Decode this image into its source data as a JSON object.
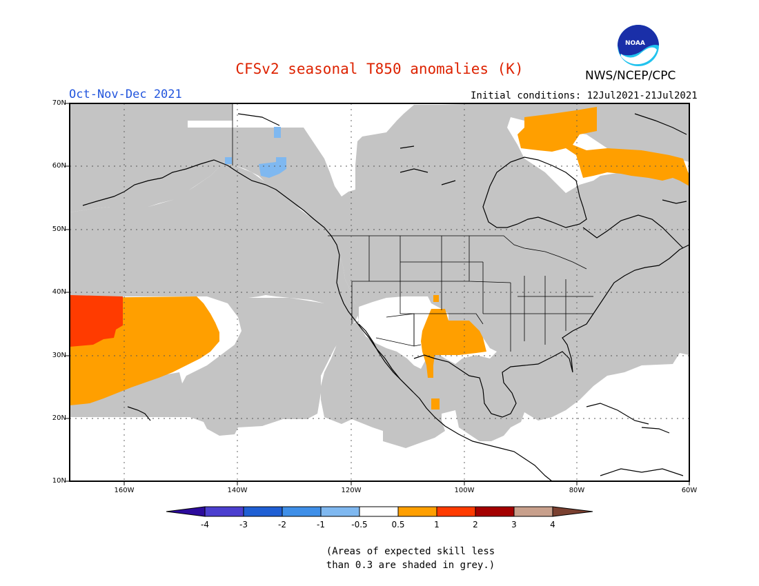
{
  "title": "CFSv2 seasonal T850 anomalies (K)",
  "season": "Oct-Nov-Dec 2021",
  "agency": "NWS/NCEP/CPC",
  "logo_text": "NOAA",
  "initial_conditions": "Initial conditions: 12Jul2021-21Jul2021",
  "lat_labels": [
    "70N",
    "60N",
    "50N",
    "40N",
    "30N",
    "20N",
    "10N"
  ],
  "lon_labels": [
    "160W",
    "140W",
    "120W",
    "100W",
    "80W",
    "60W"
  ],
  "colorbar": {
    "labels": [
      "-4",
      "-3",
      "-2",
      "-1",
      "-0.5",
      "0.5",
      "1",
      "2",
      "3",
      "4"
    ],
    "colors": [
      "#2c0b9c",
      "#4b3fcf",
      "#1f5fd4",
      "#3f8fe8",
      "#7fb8f0",
      "#ffffff",
      "#ff9f00",
      "#ff3b00",
      "#a40000",
      "#c8a08c",
      "#7a4030"
    ]
  },
  "legend_note": {
    "line1": "(Areas of expected skill less",
    "line2": "than 0.3 are shaded in grey.)"
  },
  "colors": {
    "skill_grey": "#c4c4c4",
    "warm_05_1": "#ff9f00",
    "warm_1_2": "#ff3b00",
    "cool_m1_m05": "#7fb8f0"
  }
}
